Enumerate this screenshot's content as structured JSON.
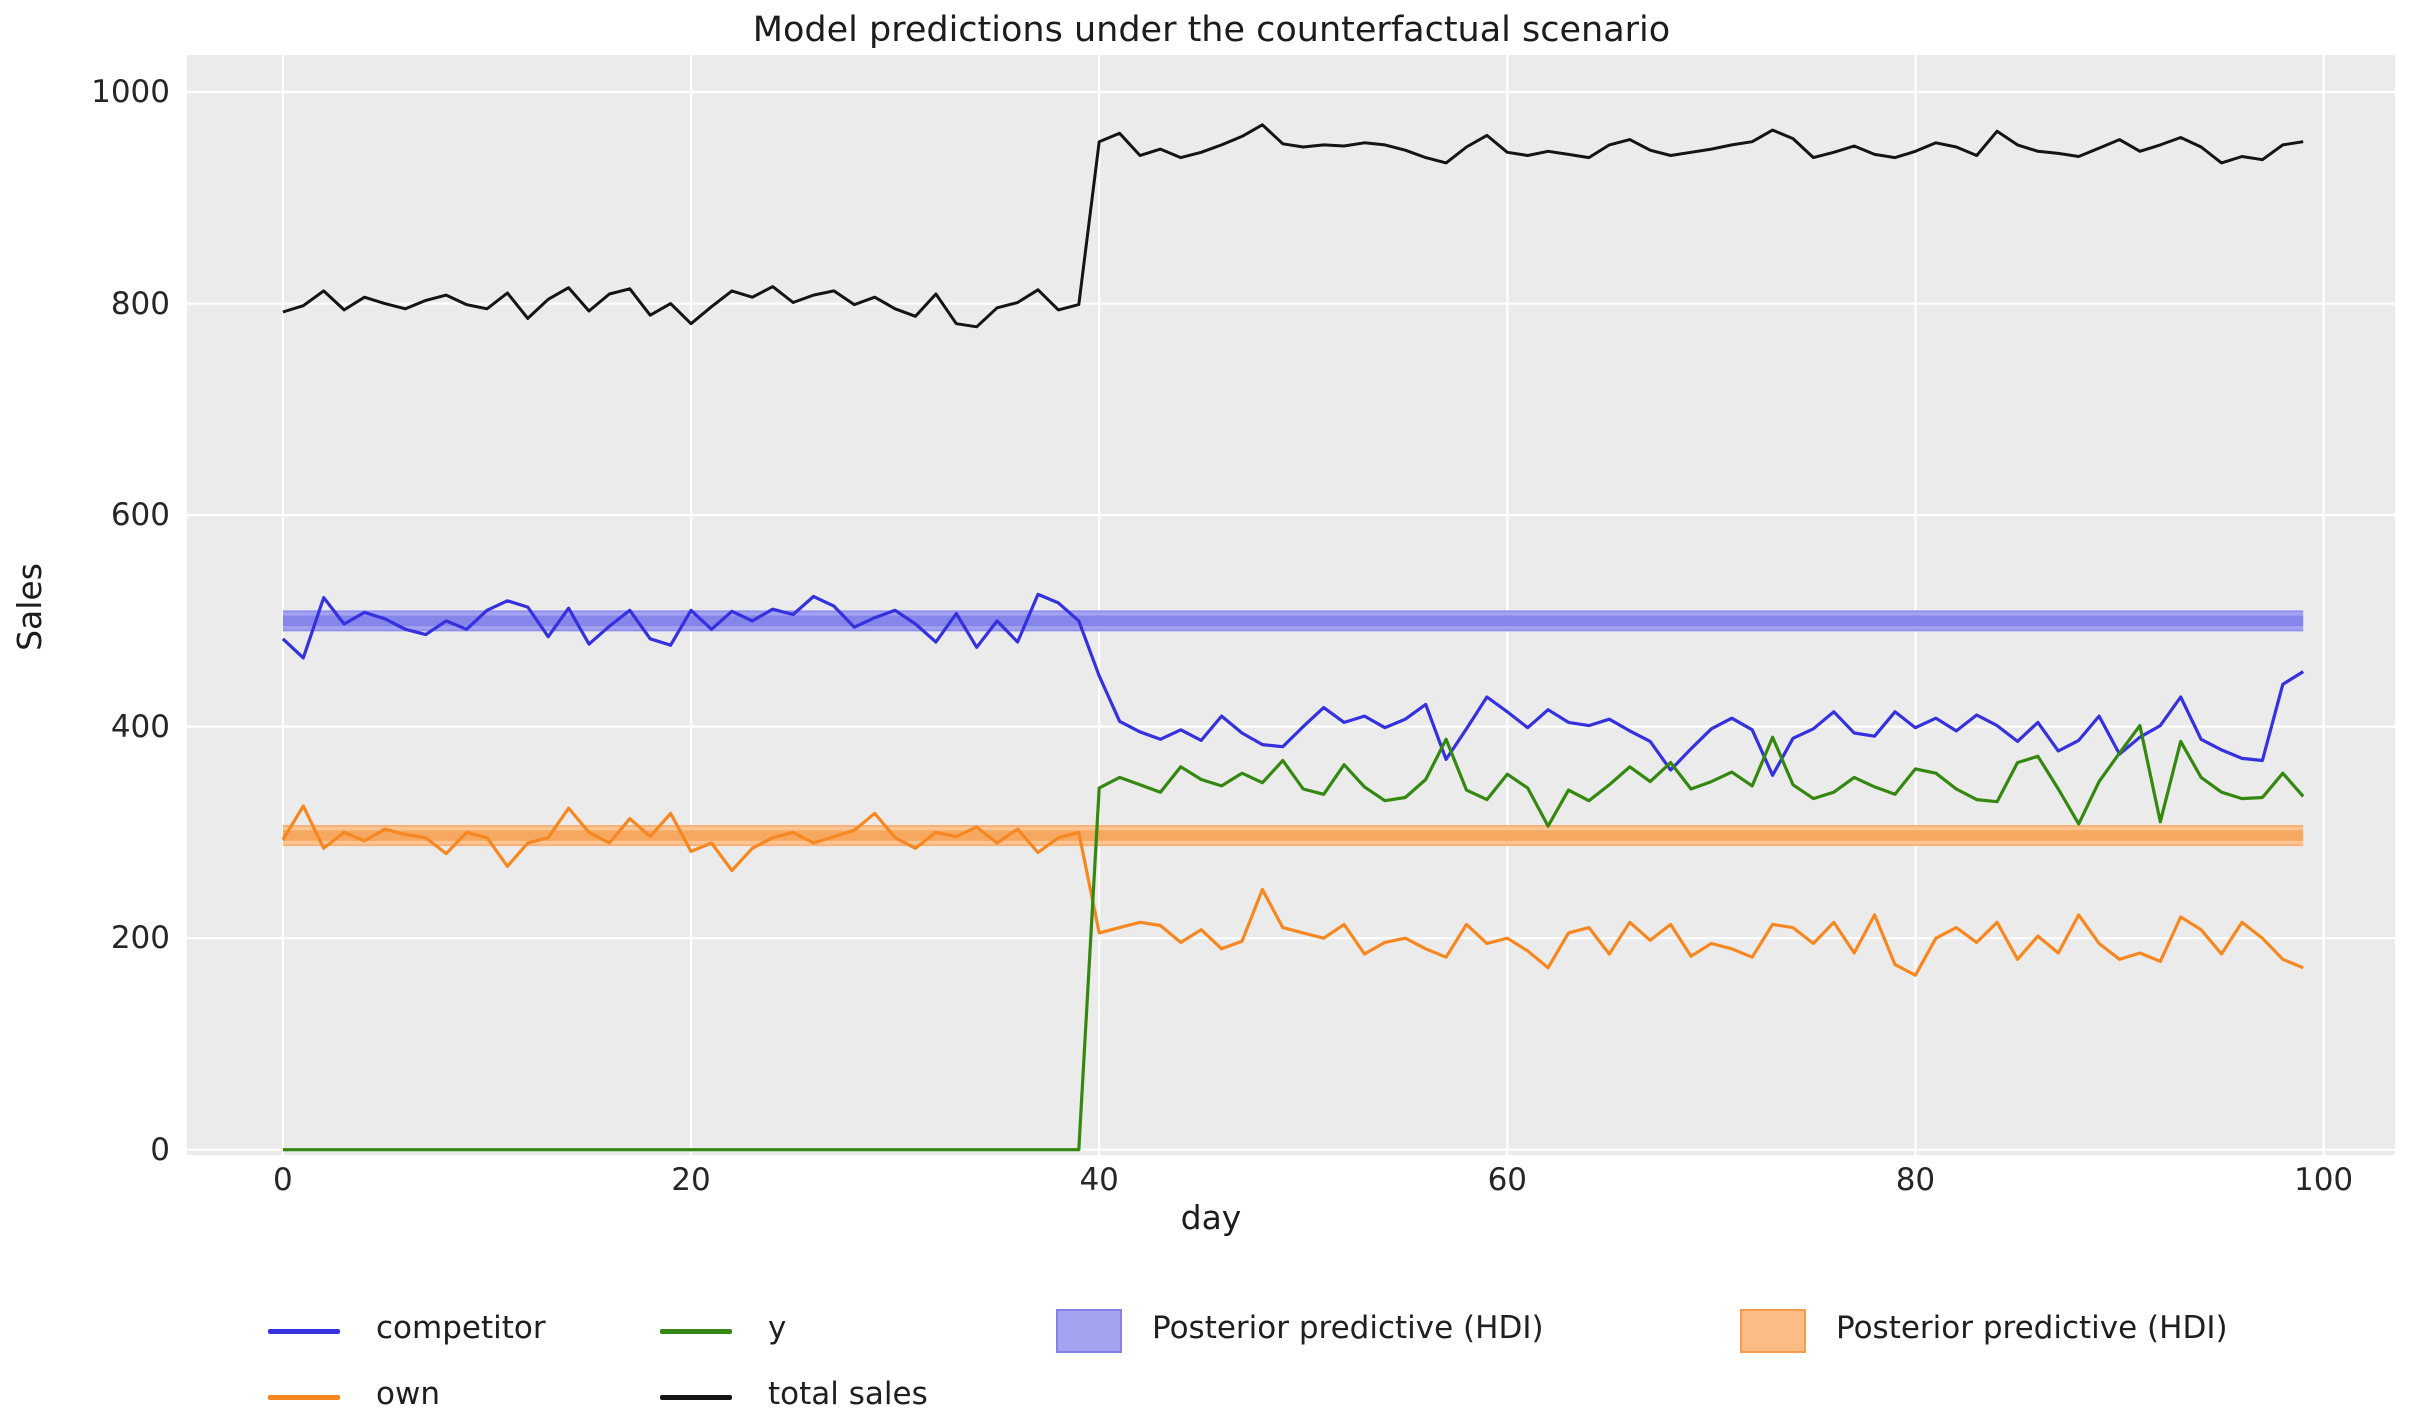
{
  "chart_data": {
    "type": "line",
    "title": "Model predictions under the counterfactual scenario",
    "xlabel": "day",
    "ylabel": "Sales",
    "xlim": [
      -4.7,
      103.5
    ],
    "ylim": [
      -5,
      1035
    ],
    "xticks": [
      0,
      20,
      40,
      60,
      80,
      100
    ],
    "yticks": [
      0,
      200,
      400,
      600,
      800,
      1000
    ],
    "grid": true,
    "background_color": "#ebebeb",
    "grid_color": "#ffffff",
    "x_start": 0,
    "x_step": 1,
    "series": [
      {
        "name": "competitor",
        "color": "#3431dd",
        "line_width": 3.2,
        "values": [
          483,
          465,
          522,
          497,
          508,
          502,
          492,
          487,
          500,
          492,
          510,
          519,
          513,
          485,
          512,
          478,
          495,
          510,
          483,
          477,
          510,
          492,
          509,
          500,
          511,
          506,
          523,
          514,
          494,
          503,
          510,
          497,
          480,
          507,
          475,
          500,
          480,
          525,
          517,
          500,
          448,
          405,
          395,
          388,
          397,
          387,
          410,
          394,
          383,
          381,
          400,
          418,
          404,
          410,
          399,
          407,
          421,
          369,
          398,
          428,
          414,
          399,
          416,
          404,
          401,
          407,
          396,
          386,
          359,
          379,
          398,
          408,
          397,
          354,
          389,
          398,
          414,
          394,
          391,
          414,
          399,
          408,
          396,
          411,
          401,
          386,
          404,
          377,
          387,
          410,
          374,
          390,
          401,
          428,
          388,
          378,
          370,
          368,
          440,
          452
        ]
      },
      {
        "name": "own",
        "color": "#f78721",
        "line_width": 3.2,
        "values": [
          293,
          325,
          285,
          300,
          292,
          303,
          298,
          295,
          280,
          300,
          295,
          268,
          290,
          295,
          323,
          300,
          290,
          313,
          296,
          318,
          282,
          290,
          264,
          285,
          295,
          300,
          290,
          296,
          302,
          318,
          295,
          285,
          300,
          296,
          305,
          290,
          303,
          281,
          295,
          300,
          205,
          210,
          215,
          212,
          196,
          208,
          190,
          197,
          246,
          210,
          205,
          200,
          213,
          185,
          196,
          200,
          190,
          182,
          213,
          195,
          200,
          188,
          172,
          205,
          210,
          185,
          215,
          198,
          213,
          183,
          195,
          190,
          182,
          213,
          210,
          195,
          215,
          186,
          222,
          175,
          165,
          200,
          210,
          196,
          215,
          180,
          202,
          186,
          222,
          195,
          180,
          186,
          178,
          220,
          208,
          185,
          215,
          200,
          180,
          172
        ]
      },
      {
        "name": "y",
        "color": "#35880f",
        "line_width": 3.2,
        "values": [
          0,
          0,
          0,
          0,
          0,
          0,
          0,
          0,
          0,
          0,
          0,
          0,
          0,
          0,
          0,
          0,
          0,
          0,
          0,
          0,
          0,
          0,
          0,
          0,
          0,
          0,
          0,
          0,
          0,
          0,
          0,
          0,
          0,
          0,
          0,
          0,
          0,
          0,
          0,
          0,
          342,
          352,
          345,
          338,
          362,
          350,
          344,
          356,
          347,
          368,
          341,
          336,
          364,
          343,
          330,
          333,
          350,
          388,
          340,
          331,
          355,
          342,
          306,
          340,
          330,
          345,
          362,
          348,
          366,
          341,
          348,
          357,
          344,
          390,
          345,
          332,
          338,
          352,
          343,
          336,
          360,
          356,
          341,
          331,
          329,
          366,
          372,
          341,
          308,
          348,
          375,
          401,
          310,
          386,
          352,
          338,
          332,
          333,
          356,
          334
        ]
      },
      {
        "name": "total sales",
        "color": "#141414",
        "line_width": 3.0,
        "values": [
          792,
          798,
          812,
          794,
          806,
          800,
          795,
          803,
          808,
          799,
          795,
          810,
          786,
          804,
          815,
          793,
          809,
          814,
          789,
          800,
          781,
          797,
          812,
          806,
          816,
          801,
          808,
          812,
          799,
          806,
          795,
          788,
          809,
          781,
          778,
          796,
          801,
          813,
          794,
          799,
          953,
          961,
          940,
          946,
          938,
          943,
          950,
          958,
          969,
          951,
          948,
          950,
          949,
          952,
          950,
          945,
          938,
          933,
          948,
          959,
          943,
          940,
          944,
          941,
          938,
          950,
          955,
          945,
          940,
          943,
          946,
          950,
          953,
          964,
          956,
          938,
          943,
          949,
          941,
          938,
          944,
          952,
          948,
          940,
          963,
          950,
          944,
          942,
          939,
          947,
          955,
          944,
          950,
          957,
          948,
          933,
          939,
          936,
          950,
          953
        ]
      }
    ],
    "bands": [
      {
        "name": "Posterior predictive (HDI)",
        "series": "competitor",
        "fill_color": "#a3a3f1",
        "inner_color": "#8585ea",
        "edge_color": "#9090ee",
        "lo": 491,
        "hi": 509,
        "inner_lo": 495,
        "inner_hi": 505,
        "x0": 0,
        "x1": 99
      },
      {
        "name": "Posterior predictive (HDI)",
        "series": "own",
        "fill_color": "#fac493",
        "inner_color": "#f7a860",
        "edge_color": "#f8b277",
        "lo": 288,
        "hi": 306,
        "inner_lo": 292,
        "inner_hi": 302,
        "x0": 0,
        "x1": 99
      }
    ],
    "legend": {
      "position": "below-axes",
      "items": [
        {
          "type": "line",
          "color": "#3431dd",
          "label": "competitor",
          "col": 0,
          "row": 0
        },
        {
          "type": "line",
          "color": "#f78721",
          "label": "own",
          "col": 0,
          "row": 1
        },
        {
          "type": "line",
          "color": "#35880f",
          "label": "y",
          "col": 1,
          "row": 0
        },
        {
          "type": "line",
          "color": "#141414",
          "label": "total sales",
          "col": 1,
          "row": 1
        },
        {
          "type": "patch",
          "color": "#a3a3f1",
          "edge": "#8181e8",
          "label": "Posterior predictive (HDI)",
          "col": 2,
          "row": 0
        },
        {
          "type": "patch",
          "color": "#fbbd85",
          "edge": "#f79b4d",
          "label": "Posterior predictive (HDI)",
          "col": 3,
          "row": 0
        }
      ]
    }
  }
}
